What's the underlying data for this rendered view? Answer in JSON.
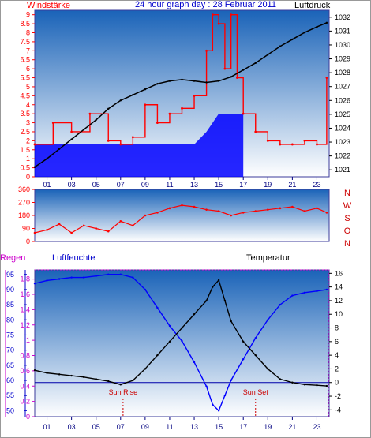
{
  "colors": {
    "wind": "#ff0000",
    "gust_hours": "#0000ff",
    "pressure": "#000000",
    "humidity": "#0000ff",
    "temperature": "#000000",
    "rain_axis": "#cc00cc",
    "title": "#0000cc",
    "plot_top": "#1a63b8",
    "plot_bottom": "#ffffff"
  },
  "chart_data": [
    {
      "type": "line",
      "title": "24 hour graph day : 28 Februar 2011",
      "left_label": "Windstärke",
      "right_label": "Luftdruck",
      "x_ticks": [
        "01",
        "03",
        "05",
        "07",
        "09",
        "11",
        "13",
        "15",
        "17",
        "19",
        "21",
        "23"
      ],
      "wind_ticks": [
        "0",
        "0.5",
        "1",
        "1.5",
        "2",
        "2.5",
        "3",
        "3.5",
        "4",
        "4.5",
        "5",
        "5.5",
        "6",
        "6.5",
        "7",
        "7.5",
        "8",
        "8.5",
        "9"
      ],
      "pressure_ticks": [
        "1021",
        "1022",
        "1023",
        "1024",
        "1025",
        "1026",
        "1027",
        "1028",
        "1029",
        "1030",
        "1031",
        "1032"
      ],
      "ylim_wind": [
        0,
        9.25
      ],
      "ylim_pressure": [
        1020.5,
        1032.5
      ],
      "series": [
        {
          "name": "Luftdruck",
          "x": [
            0,
            1,
            2,
            3,
            4,
            5,
            6,
            7,
            8,
            9,
            10,
            11,
            12,
            13,
            14,
            15,
            16,
            17,
            18,
            19,
            20,
            21,
            22,
            23,
            23.8
          ],
          "values": [
            1021.2,
            1021.8,
            1022.5,
            1023.2,
            1023.9,
            1024.6,
            1025.4,
            1026.0,
            1026.4,
            1026.8,
            1027.2,
            1027.4,
            1027.5,
            1027.4,
            1027.3,
            1027.4,
            1027.7,
            1028.2,
            1028.7,
            1029.3,
            1029.9,
            1030.4,
            1030.9,
            1031.3,
            1031.6
          ]
        },
        {
          "name": "Windstärke",
          "x": [
            0,
            1.5,
            3,
            4.5,
            6,
            7,
            8,
            9,
            10,
            11,
            12,
            13,
            14,
            14.5,
            15,
            15.5,
            16,
            16.5,
            17,
            18,
            19,
            20,
            21,
            22,
            23,
            23.8
          ],
          "values": [
            1.8,
            3.0,
            2.5,
            3.5,
            2.0,
            1.8,
            2.2,
            4.0,
            3.0,
            3.5,
            3.8,
            4.5,
            7.0,
            9.0,
            8.5,
            6.0,
            9.0,
            5.5,
            3.5,
            2.5,
            2.0,
            1.8,
            1.8,
            2.0,
            1.8,
            5.5
          ]
        }
      ],
      "gust_hours_band": {
        "x": [
          0,
          2,
          4,
          6,
          8,
          10,
          11,
          12,
          13,
          14,
          15,
          16,
          17
        ],
        "values": [
          1.8,
          1.8,
          1.8,
          1.8,
          1.8,
          1.8,
          1.8,
          1.8,
          1.8,
          2.5,
          3.5,
          3.5,
          3.5
        ]
      }
    },
    {
      "type": "line",
      "title": "",
      "right_label_letters": [
        "N",
        "W",
        "S",
        "O",
        "N"
      ],
      "y_ticks": [
        "0",
        "90",
        "180",
        "270",
        "360"
      ],
      "ylim": [
        0,
        360
      ],
      "series": [
        {
          "name": "",
          "x": [
            0,
            1,
            2,
            3,
            4,
            5,
            6,
            7,
            8,
            9,
            10,
            11,
            12,
            13,
            14,
            15,
            16,
            17,
            18,
            19,
            20,
            21,
            22,
            23,
            23.8
          ],
          "values": [
            60,
            80,
            120,
            60,
            110,
            90,
            70,
            140,
            110,
            180,
            200,
            230,
            250,
            240,
            220,
            210,
            180,
            200,
            210,
            220,
            230,
            240,
            210,
            230,
            200
          ]
        }
      ]
    },
    {
      "type": "line",
      "title": "",
      "rain_label": "Regen",
      "humidity_label": "Luftfeuchte",
      "temperature_label": "Temperatur",
      "rain_ticks": [
        "0",
        "0.2",
        "0.4",
        "0.6",
        "0.8",
        "1",
        "1.2",
        "1.4",
        "1.6",
        "1.8"
      ],
      "humidity_ticks": [
        "50",
        "55",
        "60",
        "65",
        "70",
        "75",
        "80",
        "85",
        "90",
        "95"
      ],
      "temperature_ticks": [
        "-4",
        "-2",
        "0",
        "2",
        "4",
        "6",
        "8",
        "10",
        "12",
        "14",
        "16"
      ],
      "ylim_temperature": [
        -5,
        16.5
      ],
      "ylim_humidity": [
        48,
        96.5
      ],
      "annotations": [
        {
          "text": "Sun Rise",
          "x": 7.2
        },
        {
          "text": "Sun Set",
          "x": 18.0
        }
      ],
      "series": [
        {
          "name": "Luftfeuchte",
          "x": [
            0,
            1,
            2,
            3,
            4,
            5,
            6,
            7,
            8,
            9,
            10,
            11,
            12,
            13,
            14,
            14.5,
            15,
            15.5,
            16,
            17,
            18,
            19,
            20,
            21,
            22,
            23,
            23.8
          ],
          "values": [
            92,
            93,
            93.5,
            94,
            94,
            94.5,
            95,
            95,
            94,
            90,
            84,
            78,
            73,
            66,
            58,
            52,
            50,
            55,
            60,
            67,
            74,
            80,
            85,
            88,
            89,
            89.5,
            90
          ]
        },
        {
          "name": "Temperatur",
          "x": [
            0,
            1,
            2,
            3,
            4,
            5,
            6,
            7,
            8,
            9,
            10,
            11,
            12,
            13,
            14,
            14.5,
            15,
            15.5,
            16,
            17,
            18,
            19,
            20,
            21,
            22,
            23,
            23.8
          ],
          "values": [
            1.8,
            1.4,
            1.2,
            1.0,
            0.8,
            0.5,
            0.2,
            -0.3,
            0.3,
            2.0,
            4.0,
            6.0,
            8.0,
            10.0,
            12.0,
            14.0,
            15.0,
            12.0,
            9.0,
            6.0,
            4.0,
            2.0,
            0.5,
            0,
            -0.3,
            -0.4,
            -0.5
          ]
        }
      ]
    }
  ]
}
